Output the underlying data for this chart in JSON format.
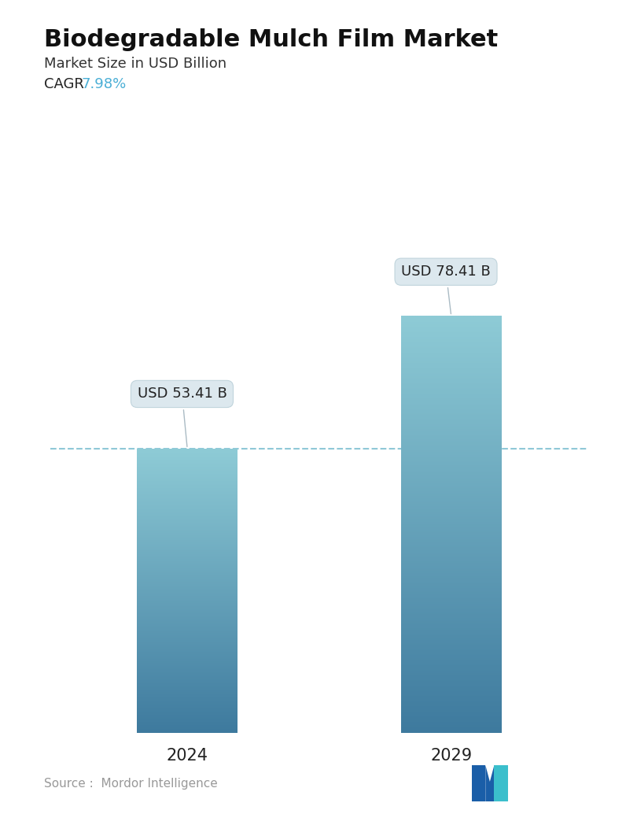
{
  "title": "Biodegradable Mulch Film Market",
  "subtitle": "Market Size in USD Billion",
  "cagr_label": "CAGR ",
  "cagr_value": "7.98%",
  "cagr_color": "#4BAFD6",
  "categories": [
    "2024",
    "2029"
  ],
  "values": [
    53.41,
    78.41
  ],
  "bar_labels": [
    "USD 53.41 B",
    "USD 78.41 B"
  ],
  "bar_color_top": "#8ECBD6",
  "bar_color_bottom": "#3E7A9E",
  "dashed_line_color": "#7BBFD0",
  "dashed_line_y": 53.41,
  "source_text": "Source :  Mordor Intelligence",
  "source_color": "#999999",
  "background_color": "#ffffff",
  "ylim": [
    0,
    95
  ],
  "title_fontsize": 22,
  "subtitle_fontsize": 13,
  "cagr_fontsize": 13,
  "label_fontsize": 13,
  "tick_fontsize": 15,
  "source_fontsize": 11,
  "bar_width": 0.38,
  "positions": [
    0,
    1
  ]
}
